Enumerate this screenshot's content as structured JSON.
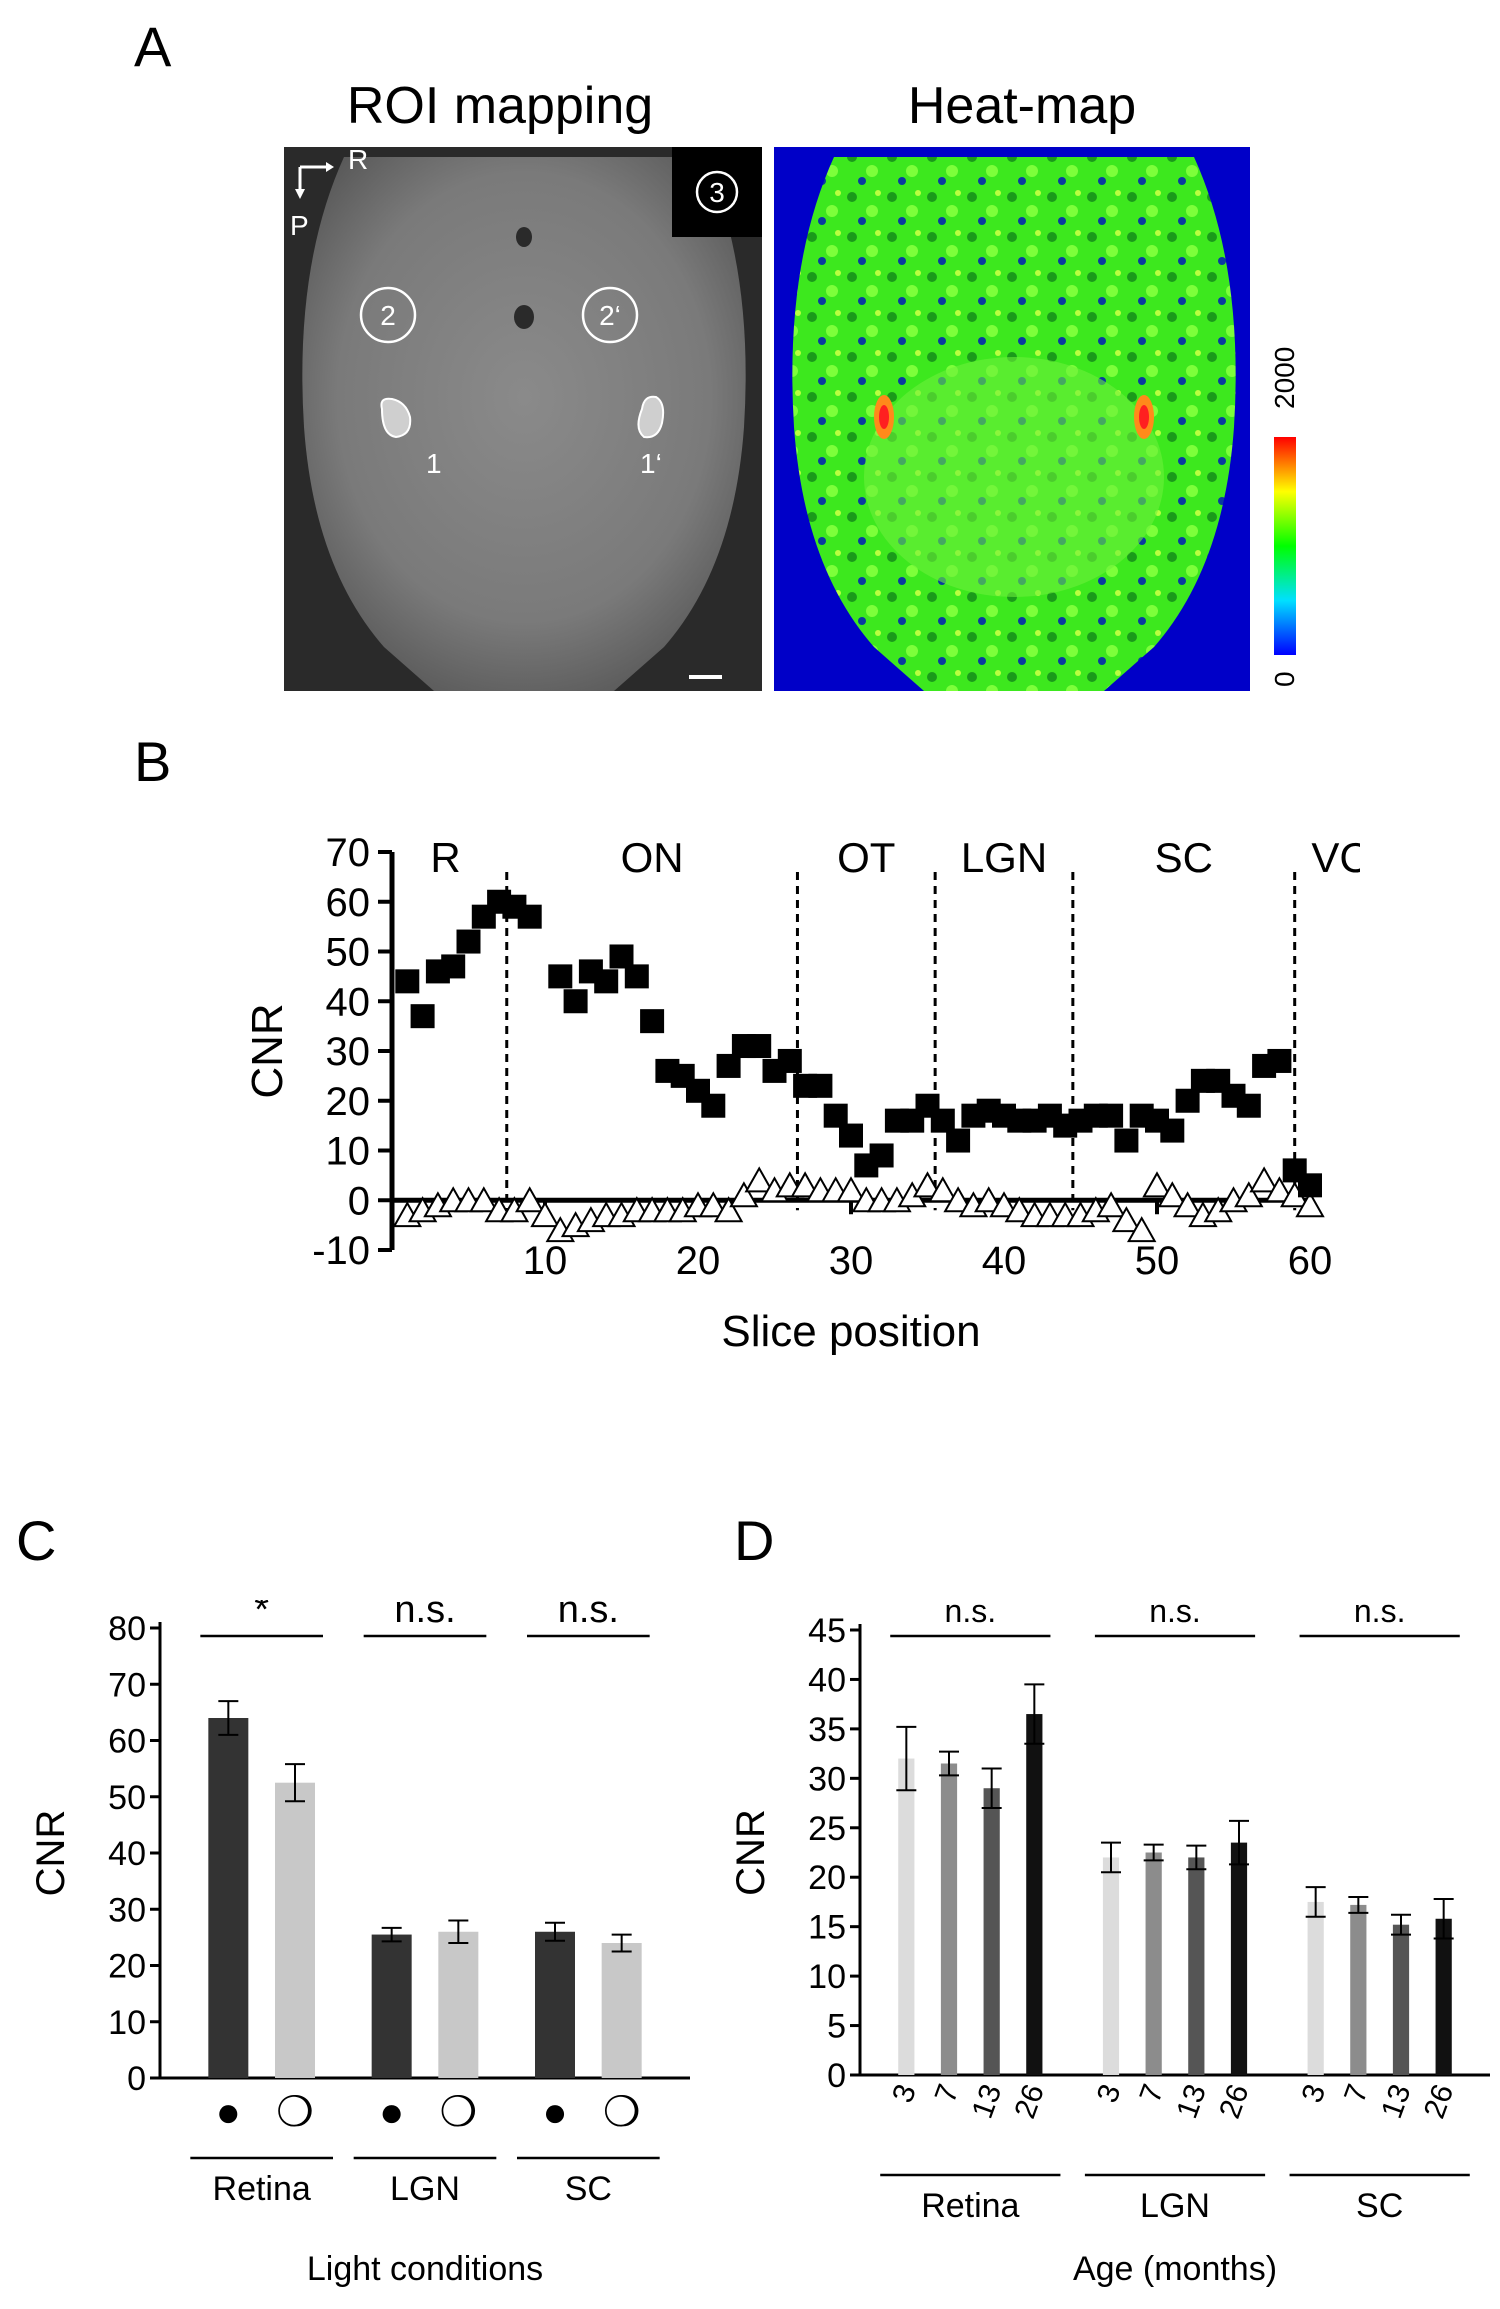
{
  "panel_a": {
    "letter": "A",
    "left_title": "ROI mapping",
    "right_title": "Heat-map",
    "orientation_r": "R",
    "orientation_p": "P",
    "roi_labels": [
      "2",
      "2‘",
      "1",
      "1‘",
      "3"
    ],
    "colorbar_max": "2000",
    "colorbar_min": "0"
  },
  "chart_data": [
    {
      "panel": "B",
      "type": "scatter",
      "xlabel": "Slice position",
      "ylabel": "CNR",
      "xlim": [
        0,
        60
      ],
      "ylim": [
        -10,
        70
      ],
      "xticks": [
        10,
        20,
        30,
        40,
        50,
        60
      ],
      "yticks": [
        -10,
        0,
        10,
        20,
        30,
        40,
        50,
        60,
        70
      ],
      "regions": [
        "R",
        "ON",
        "OT",
        "LGN",
        "SC",
        "VC"
      ],
      "region_boundaries": [
        7.5,
        26.5,
        35.5,
        44.5,
        59
      ],
      "series": [
        {
          "marker": "filled-square",
          "x": [
            1,
            2,
            3,
            4,
            5,
            6,
            7,
            8,
            9,
            11,
            12,
            13,
            14,
            15,
            16,
            17,
            18,
            19,
            20,
            21,
            22,
            23,
            24,
            25,
            26,
            27,
            28,
            29,
            30,
            31,
            32,
            33,
            34,
            35,
            36,
            37,
            38,
            39,
            40,
            41,
            42,
            43,
            44,
            45,
            46,
            47,
            48,
            49,
            50,
            51,
            52,
            53,
            54,
            55,
            56,
            57,
            58,
            59,
            60
          ],
          "y": [
            44,
            37,
            46,
            47,
            52,
            57,
            60,
            59,
            57,
            45,
            40,
            46,
            44,
            49,
            45,
            36,
            26,
            25,
            22,
            19,
            27,
            31,
            31,
            26,
            28,
            23,
            23,
            17,
            13,
            7,
            9,
            16,
            16,
            19,
            16,
            12,
            17,
            18,
            17,
            16,
            16,
            17,
            15,
            16,
            17,
            17,
            12,
            17,
            16,
            14,
            20,
            24,
            24,
            21,
            19,
            27,
            28,
            6,
            3
          ]
        },
        {
          "marker": "open-triangle",
          "x": [
            1,
            2,
            3,
            4,
            5,
            6,
            7,
            8,
            9,
            10,
            11,
            12,
            13,
            14,
            15,
            16,
            17,
            18,
            19,
            20,
            21,
            22,
            23,
            24,
            25,
            26,
            27,
            28,
            29,
            30,
            31,
            32,
            33,
            34,
            35,
            36,
            37,
            38,
            39,
            40,
            41,
            42,
            43,
            44,
            45,
            46,
            47,
            48,
            49,
            50,
            51,
            52,
            53,
            54,
            55,
            56,
            57,
            58,
            59,
            60
          ],
          "y": [
            -3,
            -2,
            -1,
            0,
            0,
            0,
            -2,
            -2,
            0,
            -3,
            -6,
            -5,
            -4,
            -3,
            -3,
            -2,
            -2,
            -2,
            -2,
            -1,
            -1,
            -2,
            1,
            4,
            2,
            3,
            3,
            2,
            2,
            2,
            0,
            0,
            0,
            1,
            3,
            2,
            0,
            -1,
            0,
            -1,
            -2,
            -3,
            -3,
            -3,
            -3,
            -2,
            -1,
            -4,
            -6,
            3,
            1,
            -1,
            -3,
            -2,
            0,
            1,
            4,
            2,
            1,
            -1
          ]
        }
      ]
    },
    {
      "panel": "C",
      "type": "bar",
      "xlabel": "Light conditions",
      "ylabel": "CNR",
      "ylim": [
        0,
        80
      ],
      "yticks": [
        0,
        10,
        20,
        30,
        40,
        50,
        60,
        70,
        80
      ],
      "groups": [
        "Retina",
        "LGN",
        "SC"
      ],
      "condition_symbols": [
        "●",
        "❍"
      ],
      "values": [
        [
          64,
          52.5
        ],
        [
          25.5,
          26
        ],
        [
          26,
          24
        ]
      ],
      "errors": [
        [
          3,
          3.3
        ],
        [
          1.2,
          2
        ],
        [
          1.6,
          1.5
        ]
      ],
      "significance": [
        "*",
        "n.s.",
        "n.s."
      ],
      "colors": [
        "#333333",
        "#c8c8c8"
      ]
    },
    {
      "panel": "D",
      "type": "bar",
      "xlabel": "Age (months)",
      "ylabel": "CNR",
      "ylim": [
        0,
        45
      ],
      "yticks": [
        0,
        5,
        10,
        15,
        20,
        25,
        30,
        35,
        40,
        45
      ],
      "groups": [
        "Retina",
        "LGN",
        "SC"
      ],
      "ages": [
        "3",
        "7",
        "13",
        "26"
      ],
      "values": [
        [
          32,
          31.5,
          29,
          36.5
        ],
        [
          22,
          22.5,
          22,
          23.5
        ],
        [
          17.5,
          17.2,
          15.2,
          15.8
        ]
      ],
      "errors": [
        [
          3.2,
          1.2,
          2,
          3
        ],
        [
          1.5,
          0.8,
          1.2,
          2.2
        ],
        [
          1.5,
          0.8,
          1,
          2
        ]
      ],
      "significance": [
        "n.s.",
        "n.s.",
        "n.s."
      ],
      "colors": [
        "#dcdcdc",
        "#8c8c8c",
        "#555555",
        "#111111"
      ]
    }
  ]
}
